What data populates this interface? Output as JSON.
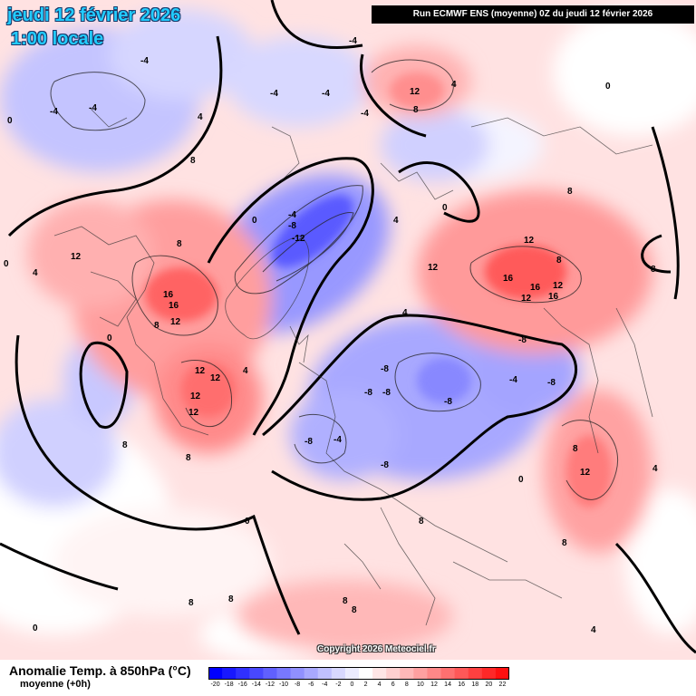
{
  "header": {
    "date": "jeudi 12 février 2026",
    "time": "1:00 locale",
    "run_info": "Run ECMWF ENS (moyenne) 0Z du jeudi 12 février 2026"
  },
  "copyright": "Copyright 2026 Meteociel.fr",
  "legend": {
    "title": "Anomalie Temp. à 850hPa (°C)",
    "subtitle": "moyenne  (+0h)",
    "ticks": [
      "-20",
      "-18",
      "-16",
      "-14",
      "-12",
      "-10",
      "-8",
      "-6",
      "-4",
      "-2",
      "0",
      "2",
      "4",
      "6",
      "8",
      "10",
      "12",
      "14",
      "16",
      "18",
      "20",
      "22"
    ],
    "colors": [
      "#0000ff",
      "#1818ff",
      "#3030ff",
      "#4848ff",
      "#6060ff",
      "#7878ff",
      "#9090ff",
      "#a8a8ff",
      "#c0c0ff",
      "#d8d8ff",
      "#ececff",
      "#ffffff",
      "#ffe6e6",
      "#ffd0d0",
      "#ffb8b8",
      "#ffa0a0",
      "#ff8888",
      "#ff7070",
      "#ff5858",
      "#ff4040",
      "#ff2828",
      "#ff1010"
    ]
  },
  "map": {
    "contour_labels": [
      "-12",
      "-8",
      "-4",
      "0",
      "4",
      "8",
      "12",
      "16"
    ]
  }
}
